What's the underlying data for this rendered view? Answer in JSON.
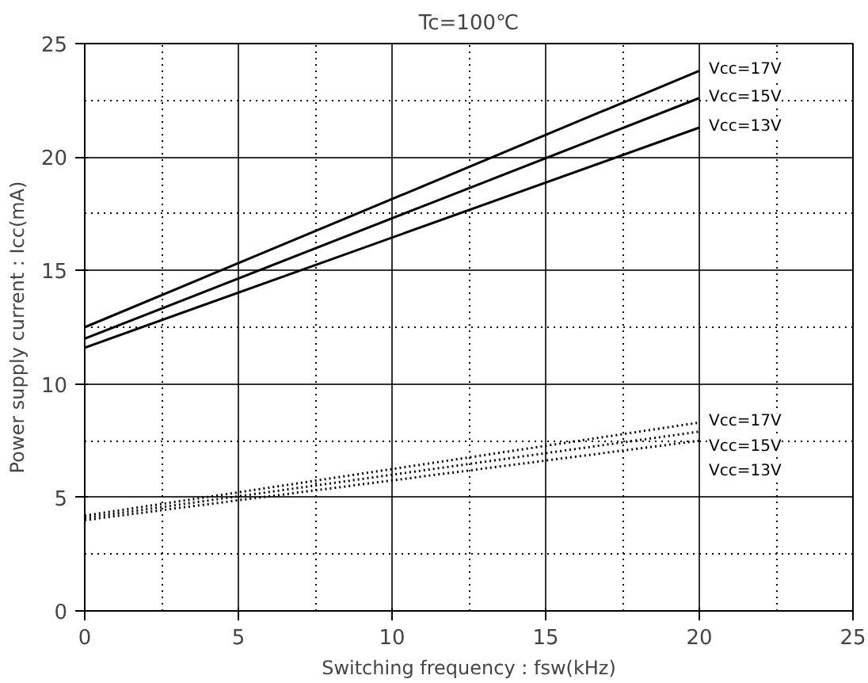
{
  "chart_data": {
    "type": "line",
    "title": "Tc=100℃",
    "xlabel": "Switching frequency : fsw(kHz)",
    "ylabel": "Power supply current : Icc(mA)",
    "x": [
      0,
      20
    ],
    "series": [
      {
        "name": "Vcc=17V",
        "color": "#000000",
        "values": [
          12.5,
          23.8
        ],
        "line_style": "solid"
      },
      {
        "name": "Vcc=15V",
        "color": "#000000",
        "values": [
          12.0,
          22.6
        ],
        "line_style": "solid"
      },
      {
        "name": "Vcc=13V",
        "color": "#000000",
        "values": [
          11.6,
          21.3
        ],
        "line_style": "solid"
      },
      {
        "name": "Vcc=17V",
        "color": "#000000",
        "values": [
          4.2,
          8.3
        ],
        "line_style": "dotted"
      },
      {
        "name": "Vcc=15V",
        "color": "#000000",
        "values": [
          4.1,
          7.9
        ],
        "line_style": "dotted"
      },
      {
        "name": "Vcc=13V",
        "color": "#000000",
        "values": [
          4.0,
          7.5
        ],
        "line_style": "dotted"
      }
    ],
    "xlim": [
      0,
      25
    ],
    "ylim": [
      0,
      25
    ],
    "xticks": [
      0,
      5,
      10,
      15,
      20,
      25
    ],
    "yticks": [
      0,
      5,
      10,
      15,
      20,
      25
    ],
    "grid": true,
    "marker": "none"
  }
}
